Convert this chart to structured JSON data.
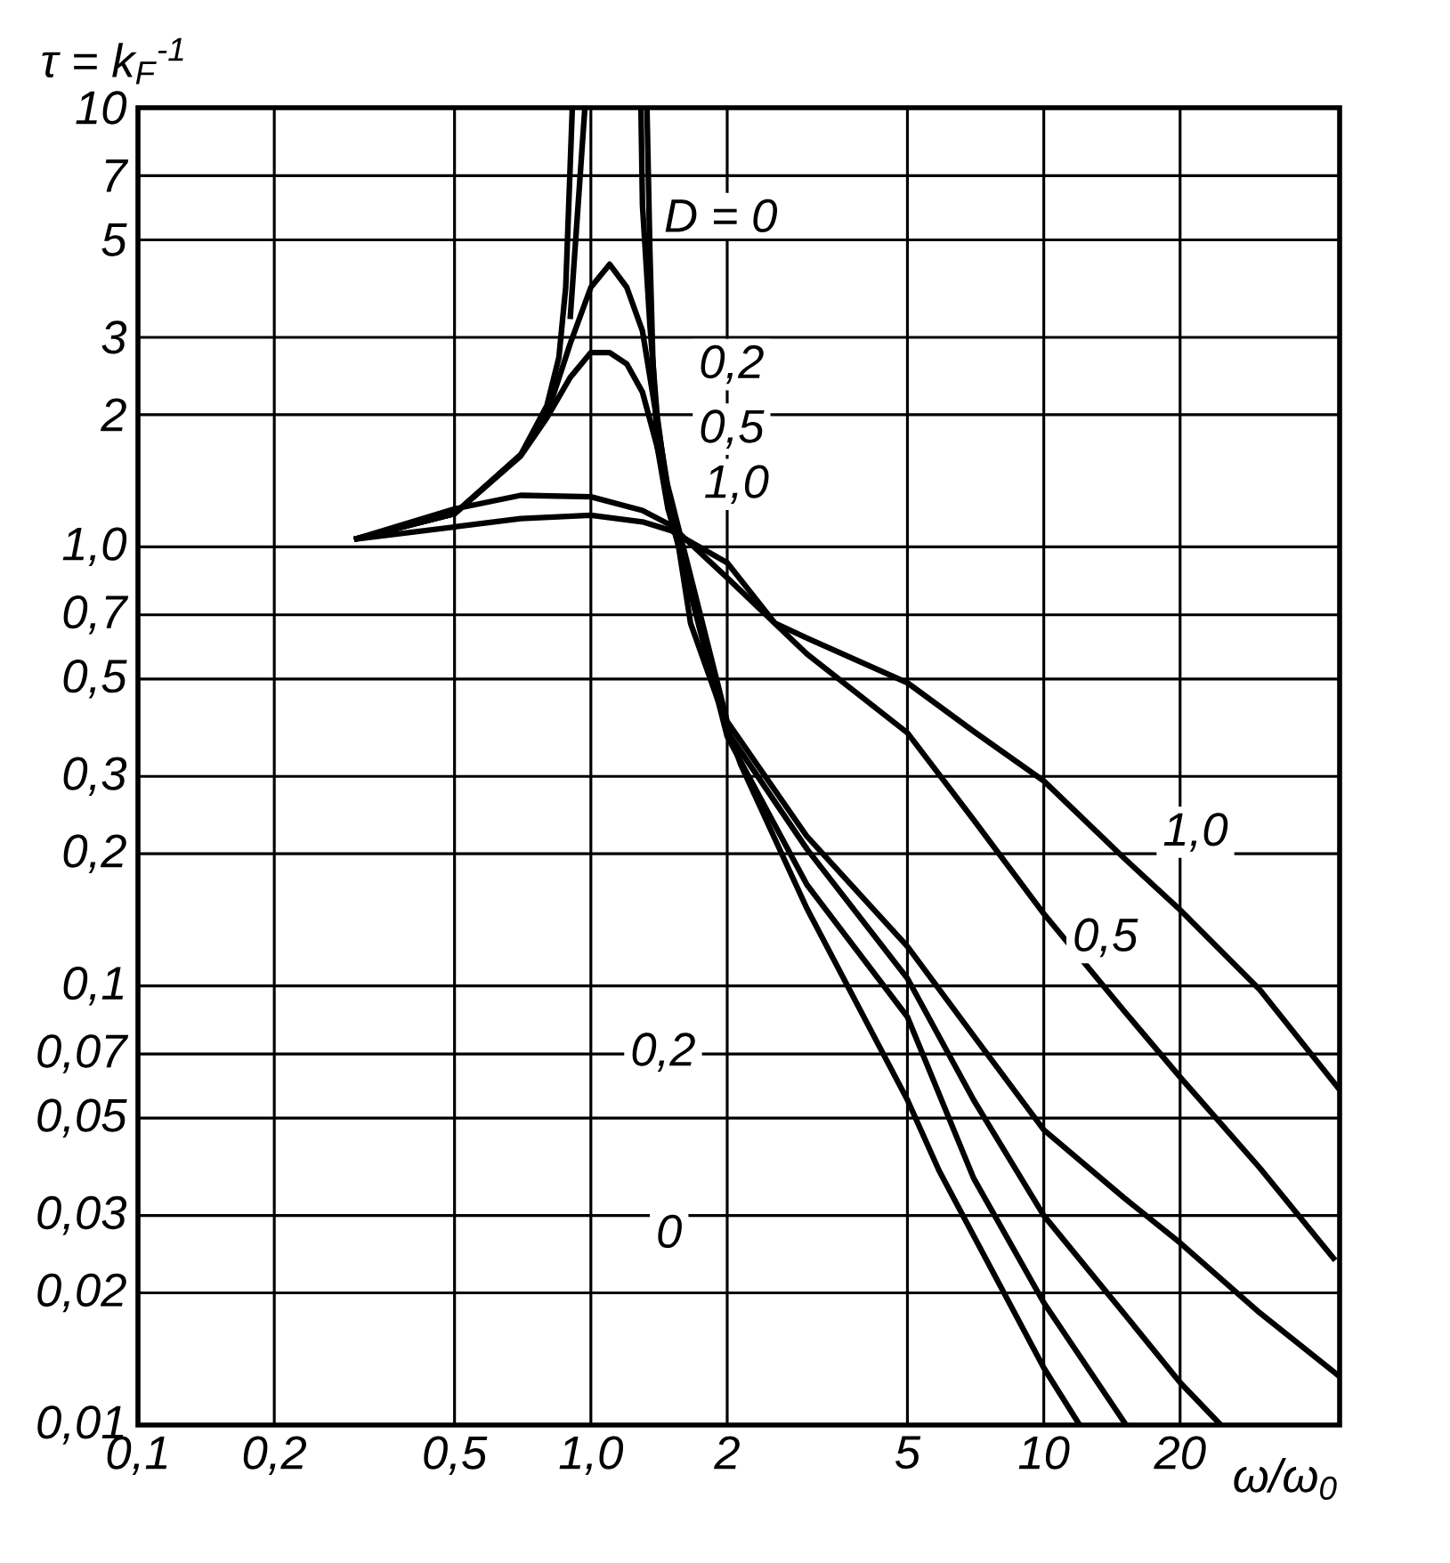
{
  "chart_data": {
    "type": "line",
    "xlabel": "ω/ω$_{0}$",
    "ylabel": "τ = k$_{F}$$^{-1}$",
    "log": "xy",
    "grid": true,
    "marker": "none",
    "line_style": "solid",
    "xlim": [
      0.1,
      45
    ],
    "ylim": [
      0.01,
      10
    ],
    "xticks": [
      {
        "value": 0.1,
        "label": "0,1"
      },
      {
        "value": 0.2,
        "label": "0,2"
      },
      {
        "value": 0.5,
        "label": "0,5"
      },
      {
        "value": 1,
        "label": "1,0"
      },
      2,
      5,
      10,
      20
    ],
    "yticks": [
      {
        "value": 0.01,
        "label": "0,01"
      },
      {
        "value": 0.02,
        "label": "0,02"
      },
      {
        "value": 0.03,
        "label": "0,03"
      },
      {
        "value": 0.05,
        "label": "0,05"
      },
      {
        "value": 0.07,
        "label": "0,07"
      },
      {
        "value": 0.1,
        "label": "0,1"
      },
      {
        "value": 0.2,
        "label": "0,2"
      },
      {
        "value": 0.3,
        "label": "0,3"
      },
      {
        "value": 0.5,
        "label": "0,5"
      },
      {
        "value": 0.7,
        "label": "0,7"
      },
      {
        "value": 1,
        "label": "1,0"
      },
      2,
      3,
      5,
      7,
      10
    ],
    "series": [
      {
        "color": "#000000",
        "x": [
          0.3,
          0.5,
          0.7,
          0.8,
          0.85,
          0.88,
          0.91,
          1.0,
          1.33,
          1.35,
          1.37,
          1.4,
          1.48,
          1.56,
          1.66,
          2.14,
          3,
          5,
          5.87,
          7,
          10,
          12
        ],
        "values": [
          1.04,
          1.19,
          1.62,
          2.1,
          2.7,
          3.9,
          10,
          null,
          10,
          4.7,
          2.7,
          1.7,
          1.22,
          1.01,
          0.67,
          0.32,
          0.15,
          0.055,
          0.038,
          0.027,
          0.0135,
          0.01
        ]
      },
      {
        "color": "#000000",
        "x": [
          0.9,
          0.97,
          1.0,
          1.29,
          1.3,
          1.35,
          1.4,
          1.5,
          2,
          3,
          5,
          7,
          10,
          15.2
        ],
        "values": [
          3.3,
          10,
          null,
          10,
          6,
          3.2,
          2.0,
          1.18,
          0.37,
          0.17,
          0.085,
          0.0365,
          0.019,
          0.01
        ]
      },
      {
        "color": "#000000",
        "x": [
          0.3,
          0.5,
          0.7,
          0.8,
          0.9,
          1.0,
          1.1,
          1.2,
          1.3,
          1.5,
          2,
          3,
          5,
          7,
          10,
          15,
          20,
          24.6
        ],
        "values": [
          1.04,
          1.19,
          1.62,
          2.0,
          2.9,
          3.9,
          4.4,
          3.9,
          3.1,
          1.25,
          0.38,
          0.205,
          0.104,
          0.055,
          0.03,
          0.018,
          0.0125,
          0.01
        ]
      },
      {
        "color": "#000000",
        "x": [
          0.3,
          0.5,
          0.7,
          0.8,
          0.9,
          1.0,
          1.1,
          1.2,
          1.3,
          1.5,
          2,
          3,
          5,
          7,
          10,
          15,
          20,
          30,
          45
        ],
        "values": [
          1.04,
          1.19,
          1.61,
          1.97,
          2.43,
          2.77,
          2.77,
          2.61,
          2.25,
          1.3,
          0.4,
          0.219,
          0.123,
          0.077,
          0.047,
          0.033,
          0.026,
          0.018,
          0.0129
        ]
      },
      {
        "color": "#000000",
        "x": [
          0.3,
          0.5,
          0.7,
          1.0,
          1.3,
          1.5,
          2,
          3,
          5,
          7,
          10,
          15,
          20,
          30,
          44
        ],
        "values": [
          1.04,
          1.22,
          1.31,
          1.3,
          1.21,
          1.12,
          0.85,
          0.57,
          0.377,
          0.239,
          0.146,
          0.088,
          0.062,
          0.0385,
          0.0237
        ]
      },
      {
        "color": "#000000",
        "x": [
          0.3,
          0.5,
          0.7,
          1.0,
          1.3,
          1.5,
          2,
          2.55,
          3,
          5,
          7,
          10,
          15,
          20,
          30,
          45
        ],
        "values": [
          1.04,
          1.11,
          1.16,
          1.18,
          1.14,
          1.09,
          0.92,
          0.67,
          0.62,
          0.49,
          0.38,
          0.293,
          0.196,
          0.149,
          0.098,
          0.058
        ]
      }
    ],
    "annotations": [
      "D = 0",
      "0,2",
      "0,5",
      "1,0",
      "1,0",
      "0,5",
      "0,2",
      "0"
    ]
  }
}
